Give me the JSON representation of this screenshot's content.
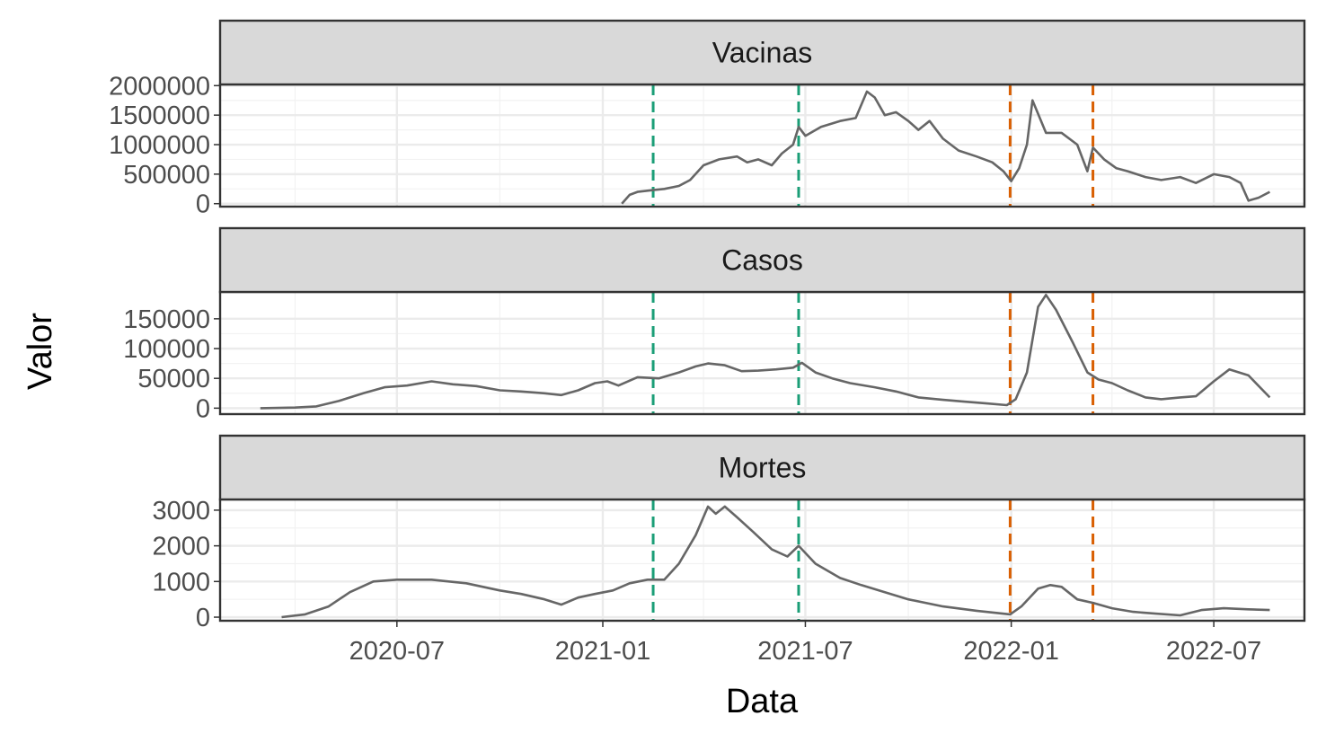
{
  "chart_data": {
    "type": "line",
    "facet_layout": "vertical",
    "xlabel": "Data",
    "ylabel": "Valor",
    "x_range": [
      "2020-01-25",
      "2022-09-20"
    ],
    "x_ticks": [
      "2020-07-01",
      "2021-01-01",
      "2021-07-01",
      "2022-01-01",
      "2022-07-01"
    ],
    "x_tick_labels": [
      "2020-07",
      "2021-01",
      "2021-07",
      "2022-01",
      "2022-07"
    ],
    "x_minor_ticks": [
      "2020-04-01",
      "2020-10-01",
      "2021-04-01",
      "2021-10-01",
      "2022-04-01"
    ],
    "grid": true,
    "line_color": "#666666",
    "vlines": [
      {
        "date": "2021-02-15",
        "color": "#1b9e77",
        "style": "dashed"
      },
      {
        "date": "2021-06-25",
        "color": "#1b9e77",
        "style": "dashed"
      },
      {
        "date": "2021-12-31",
        "color": "#d95f02",
        "style": "dashed"
      },
      {
        "date": "2022-03-15",
        "color": "#d95f02",
        "style": "dashed"
      }
    ],
    "panels": [
      {
        "title": "Vacinas",
        "ylim": [
          -50000,
          2020000
        ],
        "y_ticks": [
          0,
          500000,
          1000000,
          1500000,
          2000000
        ],
        "y_tick_labels": [
          "0",
          "500000",
          "1000000",
          "1500000",
          "2000000"
        ],
        "series": [
          {
            "x": [
              "2021-01-18",
              "2021-01-25",
              "2021-02-01",
              "2021-02-15",
              "2021-02-25",
              "2021-03-10",
              "2021-03-20",
              "2021-04-01",
              "2021-04-15",
              "2021-05-01",
              "2021-05-10",
              "2021-05-20",
              "2021-06-01",
              "2021-06-10",
              "2021-06-20",
              "2021-06-25",
              "2021-07-01",
              "2021-07-15",
              "2021-08-01",
              "2021-08-15",
              "2021-08-25",
              "2021-09-01",
              "2021-09-10",
              "2021-09-20",
              "2021-10-01",
              "2021-10-10",
              "2021-10-20",
              "2021-11-01",
              "2021-11-15",
              "2021-12-01",
              "2021-12-15",
              "2021-12-25",
              "2022-01-01",
              "2022-01-08",
              "2022-01-15",
              "2022-01-20",
              "2022-02-01",
              "2022-02-15",
              "2022-03-01",
              "2022-03-10",
              "2022-03-15",
              "2022-03-25",
              "2022-04-05",
              "2022-04-15",
              "2022-05-01",
              "2022-05-15",
              "2022-06-01",
              "2022-06-15",
              "2022-07-01",
              "2022-07-15",
              "2022-07-25",
              "2022-08-01",
              "2022-08-10",
              "2022-08-20"
            ],
            "y": [
              0,
              150000,
              200000,
              230000,
              250000,
              300000,
              400000,
              650000,
              750000,
              800000,
              700000,
              750000,
              650000,
              850000,
              1000000,
              1300000,
              1150000,
              1300000,
              1400000,
              1450000,
              1900000,
              1800000,
              1500000,
              1550000,
              1400000,
              1250000,
              1400000,
              1100000,
              900000,
              800000,
              700000,
              550000,
              380000,
              600000,
              1000000,
              1750000,
              1200000,
              1200000,
              1000000,
              550000,
              950000,
              750000,
              600000,
              550000,
              450000,
              400000,
              450000,
              350000,
              500000,
              450000,
              350000,
              50000,
              100000,
              200000
            ]
          }
        ]
      },
      {
        "title": "Casos",
        "ylim": [
          -10000,
          195000
        ],
        "y_ticks": [
          0,
          50000,
          100000,
          150000
        ],
        "y_tick_labels": [
          "0",
          "50000",
          "100000",
          "150000"
        ],
        "series": [
          {
            "x": [
              "2020-03-01",
              "2020-04-01",
              "2020-04-20",
              "2020-05-10",
              "2020-06-01",
              "2020-06-20",
              "2020-07-10",
              "2020-08-01",
              "2020-08-20",
              "2020-09-10",
              "2020-10-01",
              "2020-10-20",
              "2020-11-10",
              "2020-11-25",
              "2020-12-10",
              "2020-12-25",
              "2021-01-05",
              "2021-01-15",
              "2021-02-01",
              "2021-02-20",
              "2021-03-10",
              "2021-03-25",
              "2021-04-05",
              "2021-04-20",
              "2021-05-05",
              "2021-05-20",
              "2021-06-05",
              "2021-06-20",
              "2021-06-28",
              "2021-07-10",
              "2021-07-25",
              "2021-08-10",
              "2021-09-01",
              "2021-09-20",
              "2021-10-10",
              "2021-11-01",
              "2021-11-20",
              "2021-12-10",
              "2021-12-28",
              "2022-01-05",
              "2022-01-15",
              "2022-01-25",
              "2022-02-01",
              "2022-02-10",
              "2022-02-25",
              "2022-03-10",
              "2022-03-20",
              "2022-04-01",
              "2022-04-15",
              "2022-05-01",
              "2022-05-15",
              "2022-06-01",
              "2022-06-15",
              "2022-07-01",
              "2022-07-15",
              "2022-08-01",
              "2022-08-20"
            ],
            "y": [
              0,
              1000,
              3000,
              12000,
              25000,
              35000,
              38000,
              45000,
              40000,
              37000,
              30000,
              28000,
              25000,
              22000,
              30000,
              42000,
              45000,
              38000,
              52000,
              50000,
              60000,
              70000,
              75000,
              72000,
              62000,
              63000,
              65000,
              68000,
              76000,
              60000,
              50000,
              42000,
              35000,
              28000,
              18000,
              14000,
              11000,
              8000,
              5000,
              15000,
              60000,
              170000,
              190000,
              165000,
              110000,
              60000,
              48000,
              42000,
              30000,
              18000,
              15000,
              18000,
              20000,
              45000,
              65000,
              55000,
              18000
            ]
          }
        ]
      },
      {
        "title": "Mortes",
        "ylim": [
          -100,
          3300
        ],
        "y_ticks": [
          0,
          1000,
          2000,
          3000
        ],
        "y_tick_labels": [
          "0",
          "1000",
          "2000",
          "3000"
        ],
        "series": [
          {
            "x": [
              "2020-03-20",
              "2020-04-10",
              "2020-05-01",
              "2020-05-20",
              "2020-06-10",
              "2020-07-01",
              "2020-08-01",
              "2020-09-01",
              "2020-10-01",
              "2020-10-20",
              "2020-11-10",
              "2020-11-25",
              "2020-12-10",
              "2020-12-25",
              "2021-01-10",
              "2021-01-25",
              "2021-02-10",
              "2021-02-25",
              "2021-03-10",
              "2021-03-25",
              "2021-04-05",
              "2021-04-12",
              "2021-04-20",
              "2021-05-01",
              "2021-05-15",
              "2021-06-01",
              "2021-06-15",
              "2021-06-25",
              "2021-07-10",
              "2021-08-01",
              "2021-08-20",
              "2021-09-10",
              "2021-10-01",
              "2021-11-01",
              "2021-12-01",
              "2021-12-31",
              "2022-01-10",
              "2022-01-25",
              "2022-02-05",
              "2022-02-15",
              "2022-03-01",
              "2022-03-15",
              "2022-04-01",
              "2022-04-20",
              "2022-05-10",
              "2022-06-01",
              "2022-06-20",
              "2022-07-10",
              "2022-08-01",
              "2022-08-20"
            ],
            "y": [
              0,
              80,
              300,
              700,
              1000,
              1050,
              1050,
              950,
              750,
              650,
              500,
              350,
              550,
              650,
              750,
              950,
              1050,
              1050,
              1500,
              2300,
              3100,
              2900,
              3100,
              2800,
              2400,
              1900,
              1700,
              2000,
              1500,
              1100,
              900,
              700,
              500,
              300,
              180,
              80,
              300,
              800,
              900,
              850,
              500,
              400,
              250,
              150,
              100,
              50,
              200,
              250,
              220,
              200
            ]
          }
        ]
      }
    ]
  }
}
